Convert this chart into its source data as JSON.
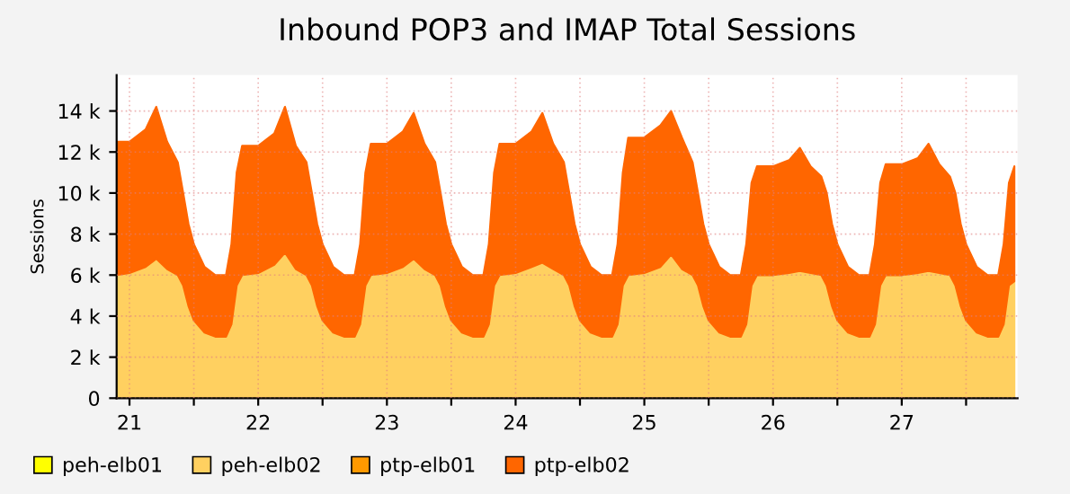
{
  "chart_data": {
    "type": "area",
    "stacked": true,
    "title": "Inbound POP3 and IMAP Total Sessions",
    "ylabel": "Sessions",
    "x": [
      21.4,
      21.5,
      21.625,
      21.708,
      21.792,
      21.875,
      21.917,
      21.958,
      22.0,
      22.083,
      22.167,
      22.25,
      22.292,
      22.333,
      22.375,
      22.5,
      22.625,
      22.708,
      22.792,
      22.875,
      22.917,
      22.958,
      23.0,
      23.083,
      23.167,
      23.25,
      23.292,
      23.333,
      23.375,
      23.5,
      23.625,
      23.708,
      23.792,
      23.875,
      23.917,
      23.958,
      24.0,
      24.083,
      24.167,
      24.25,
      24.292,
      24.333,
      24.375,
      24.5,
      24.625,
      24.708,
      24.792,
      24.875,
      24.917,
      24.958,
      25.0,
      25.083,
      25.167,
      25.25,
      25.292,
      25.333,
      25.375,
      25.5,
      25.625,
      25.708,
      25.792,
      25.875,
      25.917,
      25.958,
      26.0,
      26.083,
      26.167,
      26.25,
      26.292,
      26.333,
      26.375,
      26.5,
      26.625,
      26.708,
      26.792,
      26.875,
      26.917,
      26.958,
      27.0,
      27.083,
      27.167,
      27.25,
      27.292,
      27.333,
      27.375,
      27.5,
      27.625,
      27.708,
      27.792,
      27.875,
      27.917,
      27.958,
      28.0,
      28.083,
      28.167,
      28.25,
      28.292,
      28.333,
      28.375
    ],
    "series": [
      {
        "name": "peh-elb01",
        "color": "#ffff00",
        "values": [
          null,
          null,
          null,
          null,
          null,
          null,
          null,
          null,
          null,
          null,
          null,
          null,
          null,
          null,
          null,
          null,
          null,
          null,
          null,
          null,
          null,
          null,
          null,
          null,
          null,
          null,
          null,
          null,
          null,
          null,
          null,
          null,
          null,
          null,
          null,
          null,
          null,
          null,
          null,
          null,
          null,
          null,
          null,
          null,
          null,
          null,
          null,
          null,
          null,
          null,
          null,
          null,
          null,
          null,
          null,
          null,
          null,
          null,
          null,
          null,
          null,
          null,
          null,
          null,
          null,
          null,
          null,
          null,
          null,
          null,
          null,
          null,
          null,
          null,
          null,
          null,
          null,
          null,
          null,
          null,
          null,
          null,
          null,
          null,
          null,
          null,
          null,
          null,
          null,
          null,
          null,
          null,
          null,
          null,
          null,
          null,
          null,
          null,
          null
        ]
      },
      {
        "name": "peh-elb02",
        "color": "#ffd060",
        "values": [
          6000,
          6100,
          6400,
          6800,
          6300,
          6000,
          5500,
          4500,
          3800,
          3200,
          3000,
          3000,
          3600,
          5500,
          6000,
          6100,
          6500,
          7100,
          6300,
          6000,
          5500,
          4500,
          3800,
          3200,
          3000,
          3000,
          3600,
          5500,
          6000,
          6100,
          6400,
          6800,
          6300,
          6000,
          5500,
          4500,
          3800,
          3200,
          3000,
          3000,
          3600,
          5500,
          6000,
          6100,
          6400,
          6600,
          6300,
          6000,
          5500,
          4500,
          3800,
          3200,
          3000,
          3000,
          3600,
          5500,
          6000,
          6100,
          6400,
          7000,
          6300,
          6000,
          5500,
          4500,
          3800,
          3200,
          3000,
          3000,
          3600,
          5500,
          6000,
          6000,
          6100,
          6200,
          6100,
          6000,
          5500,
          4500,
          3800,
          3200,
          3000,
          3000,
          3600,
          5500,
          6000,
          6000,
          6100,
          6200,
          6100,
          6000,
          5500,
          4500,
          3800,
          3200,
          3000,
          3000,
          3600,
          5500,
          5700
        ]
      },
      {
        "name": "ptp-elb01",
        "color": "#ff9900",
        "values": [
          null,
          null,
          null,
          null,
          null,
          null,
          null,
          null,
          null,
          null,
          null,
          null,
          null,
          null,
          null,
          null,
          null,
          null,
          null,
          null,
          null,
          null,
          null,
          null,
          null,
          null,
          null,
          null,
          null,
          null,
          null,
          null,
          null,
          null,
          null,
          null,
          null,
          null,
          null,
          null,
          null,
          null,
          null,
          null,
          null,
          null,
          null,
          null,
          null,
          null,
          null,
          null,
          null,
          null,
          null,
          null,
          null,
          null,
          null,
          null,
          null,
          null,
          null,
          null,
          null,
          null,
          null,
          null,
          null,
          null,
          null,
          null,
          null,
          null,
          null,
          null,
          null,
          null,
          null,
          null,
          null,
          null,
          null,
          null,
          null,
          null,
          null,
          null,
          null,
          null,
          null,
          null,
          null,
          null,
          null,
          null,
          null,
          null,
          null
        ]
      },
      {
        "name": "ptp-elb02",
        "color": "#ff6600",
        "values": [
          6500,
          6400,
          6700,
          7400,
          6200,
          5500,
          4500,
          4000,
          3700,
          3200,
          3000,
          3000,
          3900,
          5500,
          6300,
          6200,
          6400,
          7100,
          6000,
          5500,
          4500,
          4000,
          3700,
          3200,
          3000,
          3000,
          3900,
          5500,
          6400,
          6300,
          6600,
          7100,
          6100,
          5500,
          4500,
          4000,
          3700,
          3200,
          3000,
          3000,
          3900,
          5500,
          6400,
          6300,
          6600,
          7300,
          6100,
          5500,
          4500,
          4000,
          3700,
          3200,
          3000,
          3000,
          3900,
          5500,
          6700,
          6600,
          6900,
          7000,
          6400,
          5500,
          4500,
          4000,
          3700,
          3200,
          3000,
          3000,
          3900,
          5000,
          5300,
          5300,
          5500,
          6000,
          5200,
          4800,
          4500,
          4000,
          3700,
          3200,
          3000,
          3000,
          3900,
          5000,
          5400,
          5400,
          5600,
          6200,
          5300,
          4800,
          4500,
          4000,
          3700,
          3200,
          3000,
          3000,
          3900,
          5000,
          5600
        ]
      }
    ],
    "xlim": [
      21.4,
      28.4
    ],
    "xticks": [
      {
        "value": 21.5,
        "label": "21"
      },
      {
        "value": 22,
        "label": null
      },
      {
        "value": 22.5,
        "label": "22"
      },
      {
        "value": 23,
        "label": null
      },
      {
        "value": 23.5,
        "label": "23"
      },
      {
        "value": 24,
        "label": null
      },
      {
        "value": 24.5,
        "label": "24"
      },
      {
        "value": 25,
        "label": null
      },
      {
        "value": 25.5,
        "label": "25"
      },
      {
        "value": 26,
        "label": null
      },
      {
        "value": 26.5,
        "label": "26"
      },
      {
        "value": 27,
        "label": null
      },
      {
        "value": 27.5,
        "label": "27"
      },
      {
        "value": 28,
        "label": null
      }
    ],
    "ylim": [
      0,
      15750
    ],
    "yticks": [
      {
        "value": 0,
        "label": "0"
      },
      {
        "value": 2000,
        "label": "2 k"
      },
      {
        "value": 4000,
        "label": "4 k"
      },
      {
        "value": 6000,
        "label": "6 k"
      },
      {
        "value": 8000,
        "label": "8 k"
      },
      {
        "value": 10000,
        "label": "10 k"
      },
      {
        "value": 12000,
        "label": "12 k"
      },
      {
        "value": 14000,
        "label": "14 k"
      }
    ],
    "grid": true,
    "legend": "bottom left"
  }
}
